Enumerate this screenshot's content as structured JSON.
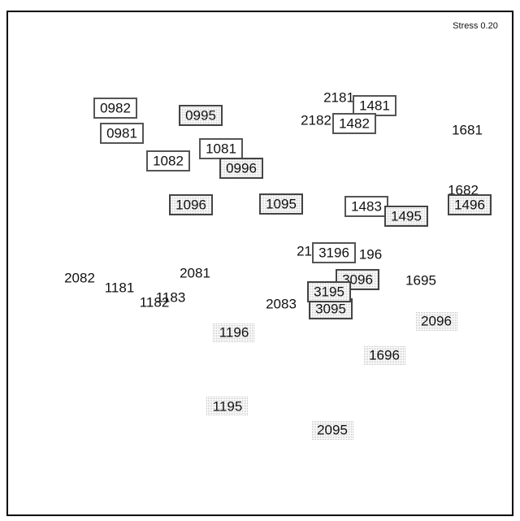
{
  "stress": "Stress 0.20",
  "nodes": [
    {
      "label": "0982"
    },
    {
      "label": "0981"
    },
    {
      "label": "0995"
    },
    {
      "label": "1082"
    },
    {
      "label": "1081"
    },
    {
      "label": "0996"
    },
    {
      "label": "1096"
    },
    {
      "label": "1095"
    },
    {
      "label": "2181"
    },
    {
      "label": "1481"
    },
    {
      "label": "2182"
    },
    {
      "label": "1482"
    },
    {
      "label": "1681"
    },
    {
      "label": "1483"
    },
    {
      "label": "1495"
    },
    {
      "label": "1682"
    },
    {
      "label": "1496"
    },
    {
      "label": "2196"
    },
    {
      "label": "196"
    },
    {
      "label": "3196"
    },
    {
      "label": "3096"
    },
    {
      "label": "1695"
    },
    {
      "label": "2082"
    },
    {
      "label": "1181"
    },
    {
      "label": "2081"
    },
    {
      "label": "1183"
    },
    {
      "label": "1182"
    },
    {
      "label": "2083"
    },
    {
      "label": "3095"
    },
    {
      "label": "3195"
    },
    {
      "label": "2096"
    },
    {
      "label": "1196"
    },
    {
      "label": "1696"
    },
    {
      "label": "1195"
    },
    {
      "label": "2095"
    }
  ]
}
